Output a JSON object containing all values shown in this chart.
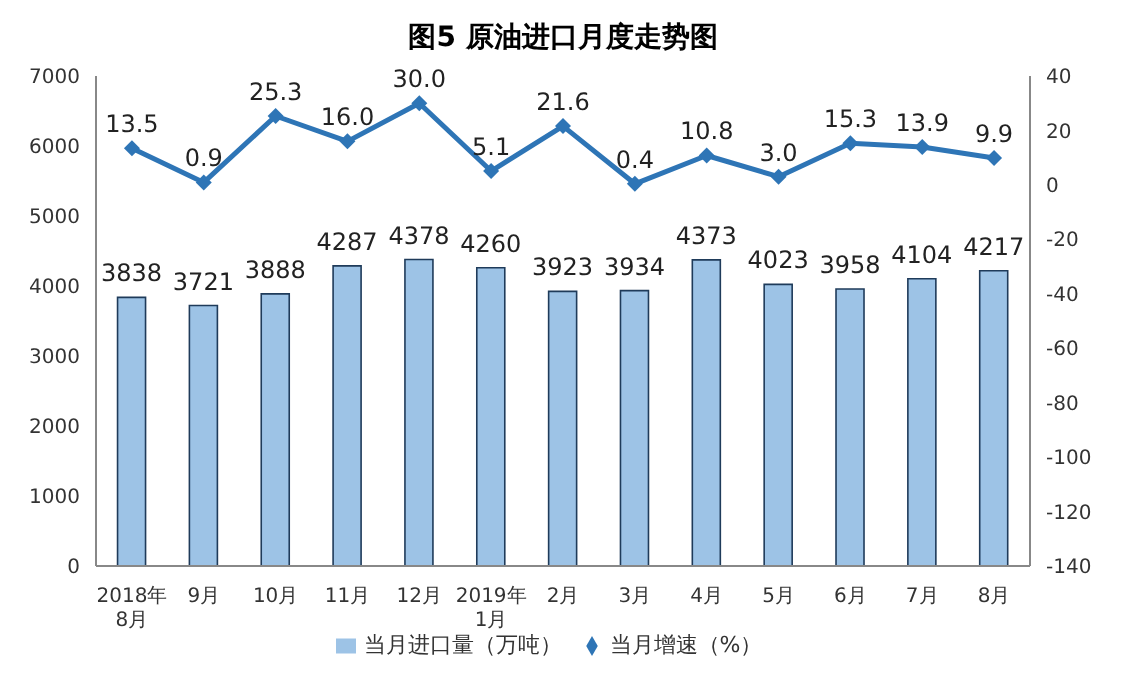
{
  "chart_data": {
    "type": "bar",
    "title": "图5  原油进口月度走势图",
    "categories": [
      "2018年\n8月",
      "9月",
      "10月",
      "11月",
      "12月",
      "2019年\n1月",
      "2月",
      "3月",
      "4月",
      "5月",
      "6月",
      "7月",
      "8月"
    ],
    "series": [
      {
        "name": "当月进口量（万吨）",
        "color": "#9dc3e6",
        "values": [
          3838,
          3721,
          3888,
          4287,
          4378,
          4260,
          3923,
          3934,
          4373,
          4023,
          3958,
          4104,
          4217
        ],
        "value_labels": [
          "3838",
          "3721",
          "3888",
          "4287",
          "4378",
          "4260",
          "3923",
          "3934",
          "4373",
          "4023",
          "3958",
          "4104",
          "4217"
        ]
      },
      {
        "name": "当月增速（%）",
        "type": "line",
        "axis": "y2",
        "color": "#2e75b6",
        "marker": "diamond",
        "values": [
          13.5,
          0.9,
          25.3,
          16.0,
          30.0,
          5.1,
          21.6,
          0.4,
          10.8,
          3.0,
          15.3,
          13.9,
          9.9
        ],
        "value_labels": [
          "13.5",
          "0.9",
          "25.3",
          "16.0",
          "30.0",
          "5.1",
          "21.6",
          "0.4",
          "10.8",
          "3.0",
          "15.3",
          "13.9",
          "9.9"
        ]
      }
    ],
    "ylim": [
      0,
      7000
    ],
    "yticks": [
      0,
      1000,
      2000,
      3000,
      4000,
      5000,
      6000,
      7000
    ],
    "y2lim": [
      -140,
      40
    ],
    "y2ticks": [
      -140,
      -120,
      -100,
      -80,
      -60,
      -40,
      -20,
      0,
      20,
      40
    ],
    "grid": false,
    "legend": "bottom"
  }
}
